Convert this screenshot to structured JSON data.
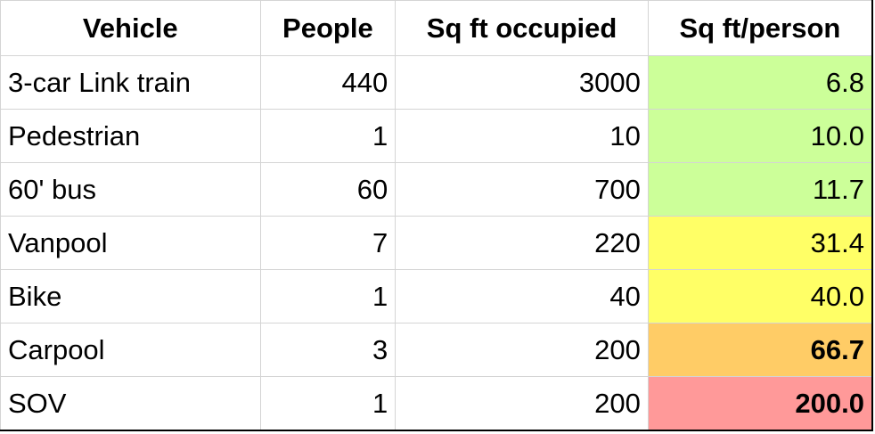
{
  "headers": [
    "Vehicle",
    "People",
    "Sq ft occupied",
    "Sq ft/person"
  ],
  "rows": [
    {
      "vehicle": "3-car Link train",
      "people": "440",
      "sqft": "3000",
      "per": "6.8",
      "color": "#ccff99",
      "bold": false
    },
    {
      "vehicle": "Pedestrian",
      "people": "1",
      "sqft": "10",
      "per": "10.0",
      "color": "#ccff99",
      "bold": false
    },
    {
      "vehicle": "60' bus",
      "people": "60",
      "sqft": "700",
      "per": "11.7",
      "color": "#ccff99",
      "bold": false
    },
    {
      "vehicle": "Vanpool",
      "people": "7",
      "sqft": "220",
      "per": "31.4",
      "color": "#ffff66",
      "bold": false
    },
    {
      "vehicle": "Bike",
      "people": "1",
      "sqft": "40",
      "per": "40.0",
      "color": "#ffff66",
      "bold": false
    },
    {
      "vehicle": "Carpool",
      "people": "3",
      "sqft": "200",
      "per": "66.7",
      "color": "#ffcc66",
      "bold": true
    },
    {
      "vehicle": "SOV",
      "people": "1",
      "sqft": "200",
      "per": "200.0",
      "color": "#ff9999",
      "bold": true
    }
  ]
}
